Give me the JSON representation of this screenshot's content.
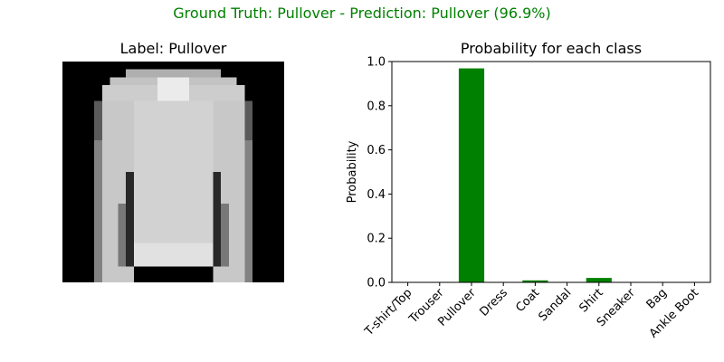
{
  "suptitle": "Ground Truth: Pullover - Prediction: Pullover (96.9%)",
  "image_panel": {
    "title": "Label: Pullover",
    "image_description": "28x28 grayscale image of a long-sleeve pullover"
  },
  "chart_data": {
    "type": "bar",
    "title": "Probability for each class",
    "xlabel": "",
    "ylabel": "Probability",
    "categories": [
      "T-shirt/Top",
      "Trouser",
      "Pullover",
      "Dress",
      "Coat",
      "Sandal",
      "Shirt",
      "Sneaker",
      "Bag",
      "Ankle Boot"
    ],
    "values": [
      0.0005,
      0.0001,
      0.969,
      0.0008,
      0.009,
      0.0001,
      0.02,
      0.0001,
      0.0003,
      0.0001
    ],
    "ylim": [
      0,
      1.0
    ],
    "yticks": [
      0.0,
      0.2,
      0.4,
      0.6,
      0.8,
      1.0
    ],
    "ytick_labels": [
      "0.0",
      "0.2",
      "0.4",
      "0.6",
      "0.8",
      "1.0"
    ],
    "bar_color": "#008000",
    "grid": false
  },
  "colors": {
    "title_color": "#008000",
    "bar": "#008000",
    "axis": "#000000"
  }
}
